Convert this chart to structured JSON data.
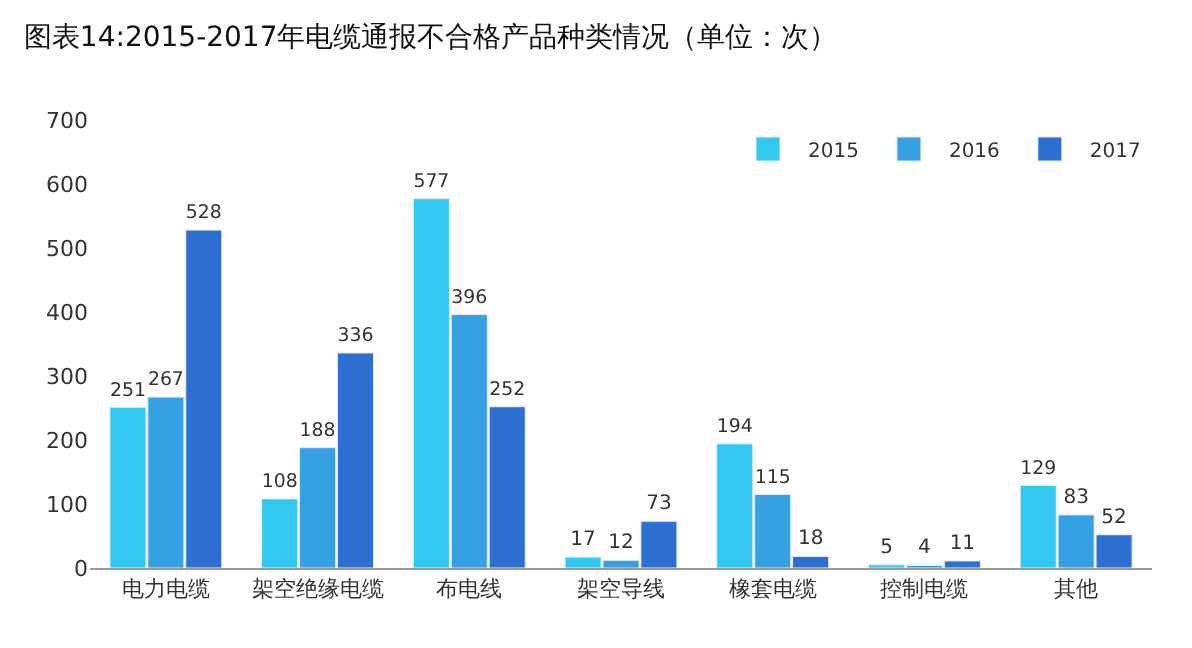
{
  "chart_data": {
    "type": "bar",
    "title": "图表14:2015-2017年电缆通报不合格产品种类情况（单位：次）",
    "categories": [
      "电力电缆",
      "架空绝缘电缆",
      "布电线",
      "架空导线",
      "橡套电缆",
      "控制电缆",
      "其他"
    ],
    "series": [
      {
        "name": "2015",
        "color": "#33c8ee",
        "values": [
          251,
          108,
          577,
          17,
          194,
          5,
          129
        ]
      },
      {
        "name": "2016",
        "color": "#35a0e2",
        "values": [
          267,
          188,
          396,
          12,
          115,
          4,
          83
        ]
      },
      {
        "name": "2017",
        "color": "#2e70d2",
        "values": [
          528,
          336,
          252,
          73,
          18,
          11,
          52
        ]
      }
    ],
    "ylim": [
      0,
      700
    ],
    "yticks": [
      0,
      100,
      200,
      300,
      400,
      500,
      600,
      700
    ],
    "legend": "top right",
    "data_labels": true
  }
}
